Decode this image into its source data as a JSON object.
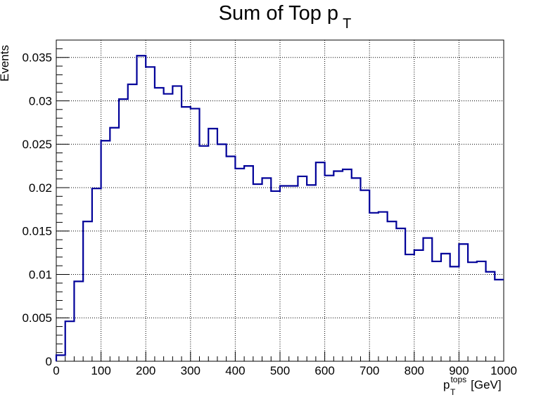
{
  "chart_data": {
    "type": "line",
    "style": "step-histogram",
    "title": "Sum of Top p",
    "title_subscript": "T",
    "xlabel": "p",
    "xlabel_subscript": "T",
    "xlabel_superscript": "tops",
    "xlabel_unit": "[GeV]",
    "ylabel": "Events",
    "xlim": [
      0,
      1000
    ],
    "ylim": [
      0,
      0.037
    ],
    "grid": true,
    "line_color": "#000099",
    "x_ticks": [
      0,
      100,
      200,
      300,
      400,
      500,
      600,
      700,
      800,
      900,
      1000
    ],
    "x_tick_labels": [
      "0",
      "100",
      "200",
      "300",
      "400",
      "500",
      "600",
      "700",
      "800",
      "900",
      "1000"
    ],
    "y_ticks": [
      0,
      0.005,
      0.01,
      0.015,
      0.02,
      0.025,
      0.03,
      0.035
    ],
    "y_tick_labels": [
      "0",
      "0.005",
      "0.01",
      "0.015",
      "0.02",
      "0.025",
      "0.03",
      "0.035"
    ],
    "bin_edges": [
      0,
      20,
      40,
      60,
      80,
      100,
      120,
      140,
      160,
      180,
      200,
      220,
      240,
      260,
      280,
      300,
      320,
      340,
      360,
      380,
      400,
      420,
      440,
      460,
      480,
      500,
      520,
      540,
      560,
      580,
      600,
      620,
      640,
      660,
      680,
      700,
      720,
      740,
      760,
      780,
      800,
      820,
      840,
      860,
      880,
      900,
      920,
      940,
      960,
      980,
      1000
    ],
    "values": [
      0.0007,
      0.0046,
      0.0092,
      0.0161,
      0.0199,
      0.0254,
      0.0269,
      0.0302,
      0.0319,
      0.0352,
      0.0339,
      0.0315,
      0.0308,
      0.0317,
      0.0293,
      0.0291,
      0.0248,
      0.0268,
      0.025,
      0.0236,
      0.0222,
      0.0225,
      0.0204,
      0.0211,
      0.0196,
      0.0202,
      0.0202,
      0.0213,
      0.0203,
      0.0229,
      0.0214,
      0.0219,
      0.0221,
      0.0211,
      0.0197,
      0.0171,
      0.0172,
      0.0161,
      0.0153,
      0.0123,
      0.0128,
      0.0142,
      0.0115,
      0.0124,
      0.0109,
      0.0135,
      0.0114,
      0.0115,
      0.0103,
      0.0094
    ]
  }
}
